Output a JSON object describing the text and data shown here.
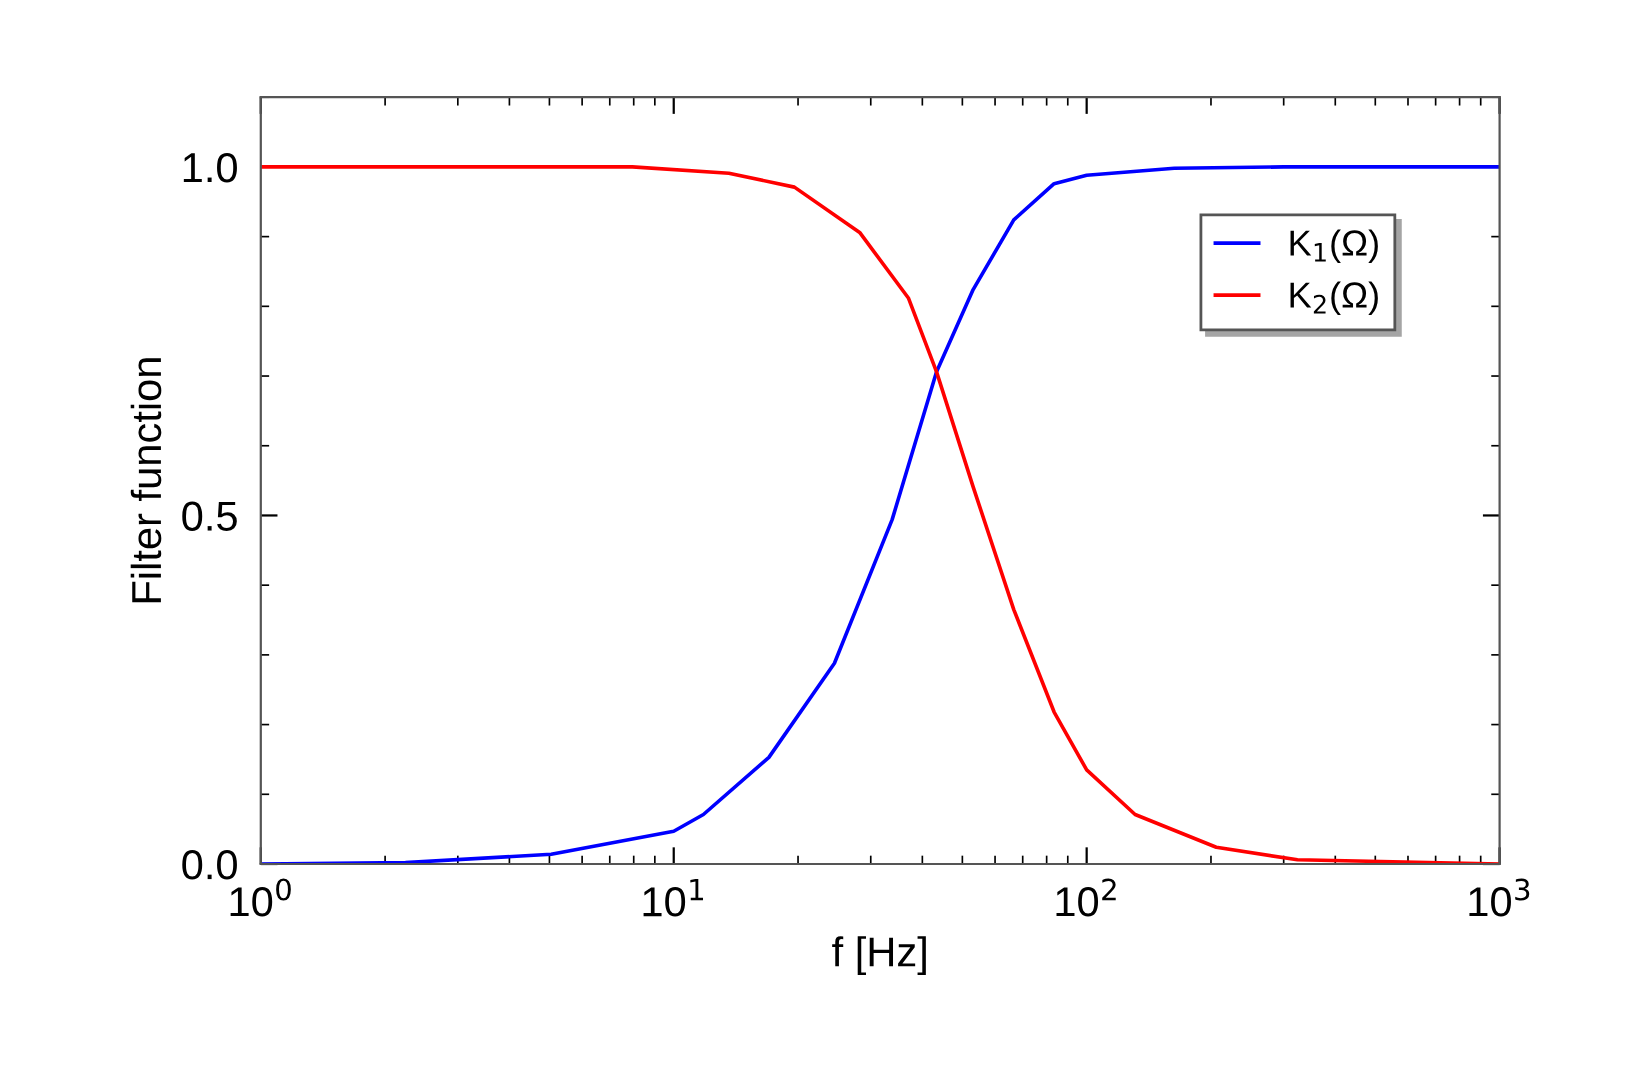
{
  "chart_data": {
    "type": "line",
    "xlabel": "f [Hz]",
    "ylabel": "Filter function",
    "log": "x",
    "xlim": [
      1,
      1000
    ],
    "ylim": [
      0,
      1.1
    ],
    "xticks": [
      {
        "value": 1,
        "label": "10$^{0}$"
      },
      {
        "value": 10,
        "label": "10$^{1}$"
      },
      {
        "value": 100,
        "label": "10$^{2}$"
      },
      {
        "value": 1000,
        "label": "10$^{3}$"
      }
    ],
    "yticks": [
      {
        "value": 0,
        "label": "0.0"
      },
      {
        "value": 0.5,
        "label": "0.5"
      },
      {
        "value": 1,
        "label": "1.0"
      }
    ],
    "grid": false,
    "legend": "top right",
    "marker": "none",
    "line_style": "solid",
    "series": [
      {
        "name": "K$_{1}$(Ω)",
        "color": "#0000ff",
        "x": [
          1,
          2.24,
          5.05,
          10,
          11.8,
          17,
          24.5,
          33.8,
          43.3,
          53.1,
          66.6,
          83.4,
          100,
          163,
          300,
          1000
        ],
        "values": [
          0,
          0.002,
          0.014,
          0.047,
          0.071,
          0.153,
          0.288,
          0.494,
          0.706,
          0.824,
          0.924,
          0.976,
          0.988,
          0.998,
          1,
          1
        ]
      },
      {
        "name": "K$_{2}$(Ω)",
        "color": "#ff0000",
        "x": [
          1,
          7.94,
          13.6,
          19.6,
          28.2,
          37,
          43.3,
          53.1,
          66.6,
          83.4,
          100,
          131,
          206,
          324,
          1000
        ],
        "values": [
          1,
          1,
          0.991,
          0.971,
          0.906,
          0.812,
          0.706,
          0.541,
          0.365,
          0.218,
          0.135,
          0.071,
          0.024,
          0.006,
          0
        ]
      }
    ]
  }
}
